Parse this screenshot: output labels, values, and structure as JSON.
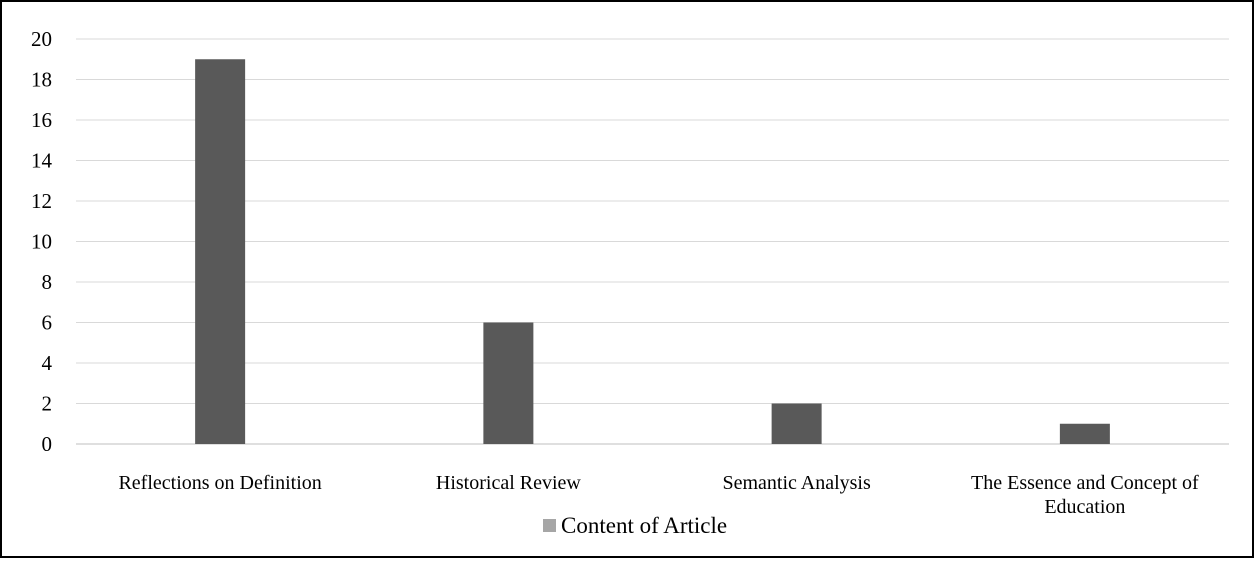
{
  "chart_data": {
    "type": "bar",
    "categories": [
      [
        "Reflections on Definition"
      ],
      [
        "Historical Review"
      ],
      [
        "Semantic Analysis"
      ],
      [
        "The Essence and Concept of",
        "Education"
      ]
    ],
    "series": [
      {
        "name": "Content of Article",
        "values": [
          19,
          6,
          2,
          1
        ],
        "color": "#595959"
      }
    ],
    "ylim": [
      0,
      20
    ],
    "yticks": [
      "0",
      "2",
      "4",
      "6",
      "8",
      "10",
      "12",
      "14",
      "16",
      "18",
      "20"
    ],
    "grid": true,
    "legend": "bottom",
    "legend_color": "#a6a6a6",
    "gridline_color": "#d9d9d9",
    "axis_color": "#bfbfbf"
  }
}
